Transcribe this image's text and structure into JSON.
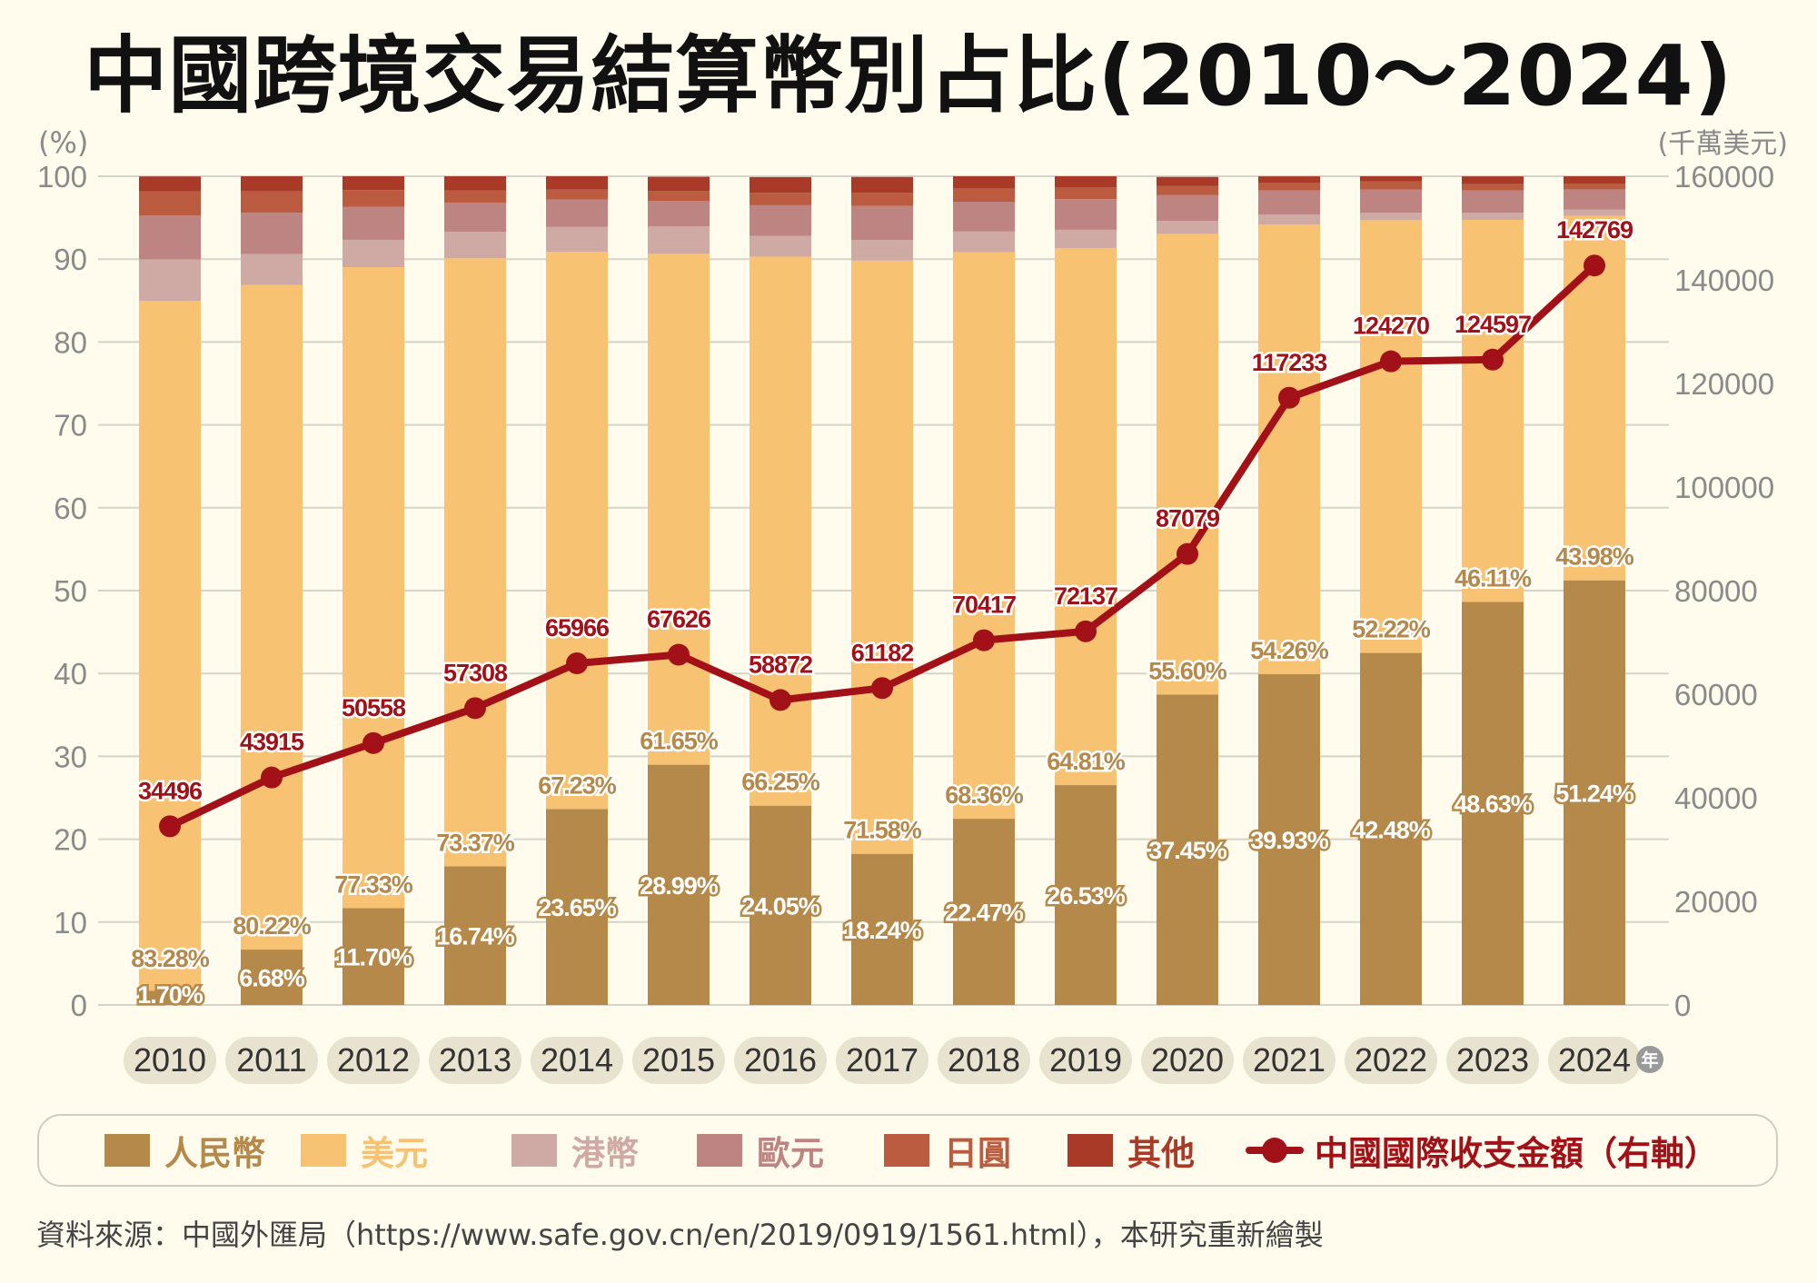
{
  "title": "中國跨境交易結算幣別占比(2010～2024)",
  "source": "資料來源：中國外匯局（https://www.safe.gov.cn/en/2019/0919/1561.html），本研究重新繪製",
  "chart_data": {
    "type": "stacked-bar+line",
    "title": "中國跨境交易結算幣別占比(2010～2024)",
    "left_axis_unit": "(%)",
    "right_axis_unit": "(千萬美元)",
    "x_unit": "年",
    "ylim": [
      0,
      100
    ],
    "y_ticks": [
      0,
      10,
      20,
      30,
      40,
      50,
      60,
      70,
      80,
      90,
      100
    ],
    "y2lim": [
      0,
      160000
    ],
    "y2_ticks": [
      0,
      20000,
      40000,
      60000,
      80000,
      100000,
      120000,
      140000,
      160000
    ],
    "grid": true,
    "legend_position": "bottom",
    "categories": [
      "2010",
      "2011",
      "2012",
      "2013",
      "2014",
      "2015",
      "2016",
      "2017",
      "2018",
      "2019",
      "2020",
      "2021",
      "2022",
      "2023",
      "2024"
    ],
    "series": [
      {
        "name": "人民幣",
        "color": "#b5894a",
        "labeled": true,
        "values": [
          1.7,
          6.68,
          11.7,
          16.74,
          23.65,
          28.99,
          24.05,
          18.24,
          22.47,
          26.53,
          37.45,
          39.93,
          42.48,
          48.63,
          51.24
        ]
      },
      {
        "name": "美元",
        "color": "#f7c272",
        "labeled": true,
        "values": [
          83.28,
          80.22,
          77.33,
          73.37,
          67.23,
          61.65,
          66.25,
          71.58,
          68.36,
          64.81,
          55.6,
          54.26,
          52.22,
          46.11,
          43.98
        ]
      },
      {
        "name": "港幣",
        "color": "#cfa9a3",
        "labeled": false,
        "values": [
          5.0,
          3.7,
          3.3,
          3.2,
          3.0,
          3.3,
          2.5,
          2.5,
          2.5,
          2.2,
          1.55,
          1.2,
          0.9,
          0.85,
          0.75
        ]
      },
      {
        "name": "歐元",
        "color": "#bd8481",
        "labeled": false,
        "values": [
          5.3,
          5.0,
          4.0,
          3.5,
          3.3,
          3.1,
          3.7,
          4.1,
          3.6,
          3.7,
          3.15,
          2.9,
          2.8,
          2.7,
          2.45
        ]
      },
      {
        "name": "日圓",
        "color": "#bb5c40",
        "labeled": false,
        "values": [
          2.9,
          2.6,
          2.0,
          1.45,
          1.2,
          1.2,
          1.5,
          1.6,
          1.6,
          1.4,
          1.1,
          0.9,
          1.0,
          0.75,
          0.7
        ]
      },
      {
        "name": "其他",
        "color": "#aa3a28",
        "labeled": false,
        "values": [
          1.8,
          1.8,
          1.7,
          1.95,
          1.7,
          1.7,
          1.9,
          1.9,
          1.6,
          1.4,
          1.07,
          0.8,
          0.6,
          0.95,
          1.0
        ]
      }
    ],
    "line": {
      "name": "中國國際收支金額（右軸）",
      "color": "#a31118",
      "axis": "right",
      "values": [
        34496,
        43915,
        50558,
        57308,
        65966,
        67626,
        58872,
        61182,
        70417,
        72137,
        87079,
        117233,
        124270,
        124597,
        142769
      ]
    }
  }
}
